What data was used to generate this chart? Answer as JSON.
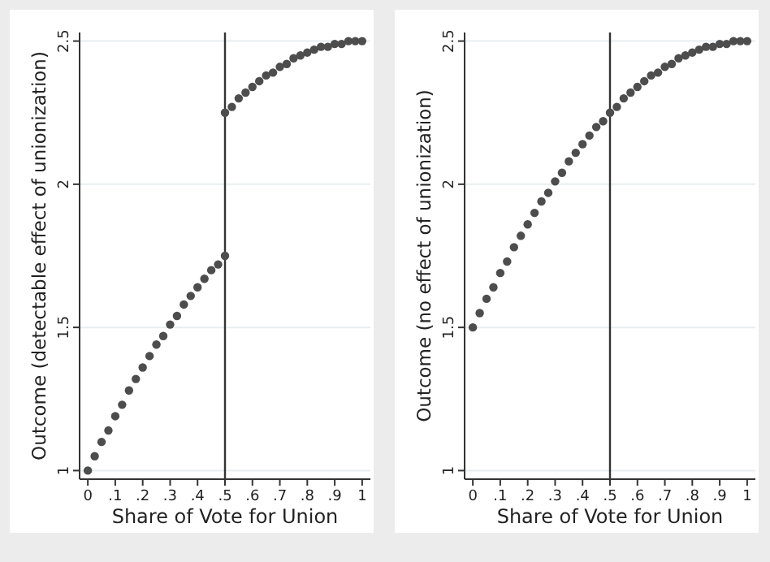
{
  "chart_data": [
    {
      "type": "scatter",
      "xlabel": "Share of Vote for Union",
      "ylabel": "Outcome (detectable effect of unionization)",
      "xlim": [
        -0.03,
        1.03
      ],
      "ylim": [
        0.97,
        2.53
      ],
      "xticks": [
        {
          "value": 0,
          "label": "0"
        },
        {
          "value": 0.1,
          "label": ".1"
        },
        {
          "value": 0.2,
          "label": ".2"
        },
        {
          "value": 0.3,
          "label": ".3"
        },
        {
          "value": 0.4,
          "label": ".4"
        },
        {
          "value": 0.5,
          "label": ".5"
        },
        {
          "value": 0.6,
          "label": ".6"
        },
        {
          "value": 0.7,
          "label": ".7"
        },
        {
          "value": 0.8,
          "label": ".8"
        },
        {
          "value": 0.9,
          "label": ".9"
        },
        {
          "value": 1,
          "label": "1"
        }
      ],
      "yticks": [
        1,
        1.5,
        2,
        2.5
      ],
      "grid": "y",
      "marker": "circle",
      "ref_lines": [
        {
          "axis": "x",
          "value": 0.5,
          "color": "#333333"
        }
      ],
      "series": [
        {
          "color": "#4d4d4d",
          "x": [
            0,
            0.025,
            0.05,
            0.075,
            0.1,
            0.125,
            0.15,
            0.175,
            0.2,
            0.225,
            0.25,
            0.275,
            0.3,
            0.325,
            0.35,
            0.375,
            0.4,
            0.425,
            0.45,
            0.475,
            0.5
          ],
          "values": [
            1,
            1.05,
            1.1,
            1.14,
            1.19,
            1.23,
            1.28,
            1.32,
            1.36,
            1.4,
            1.44,
            1.47,
            1.51,
            1.54,
            1.58,
            1.61,
            1.64,
            1.67,
            1.7,
            1.72,
            1.75
          ]
        },
        {
          "color": "#4d4d4d",
          "x": [
            0.5,
            0.525,
            0.55,
            0.575,
            0.6,
            0.625,
            0.65,
            0.675,
            0.7,
            0.725,
            0.75,
            0.775,
            0.8,
            0.825,
            0.85,
            0.875,
            0.9,
            0.925,
            0.95,
            0.975,
            1
          ],
          "values": [
            2.25,
            2.27,
            2.3,
            2.32,
            2.34,
            2.36,
            2.38,
            2.39,
            2.41,
            2.42,
            2.44,
            2.45,
            2.46,
            2.47,
            2.48,
            2.48,
            2.49,
            2.49,
            2.5,
            2.5,
            2.5
          ]
        }
      ]
    },
    {
      "type": "scatter",
      "xlabel": "Share of Vote for Union",
      "ylabel": "Outcome (no effect of unionization)",
      "xlim": [
        -0.03,
        1.03
      ],
      "ylim": [
        0.97,
        2.53
      ],
      "xticks": [
        {
          "value": 0,
          "label": "0"
        },
        {
          "value": 0.1,
          "label": ".1"
        },
        {
          "value": 0.2,
          "label": ".2"
        },
        {
          "value": 0.3,
          "label": ".3"
        },
        {
          "value": 0.4,
          "label": ".4"
        },
        {
          "value": 0.5,
          "label": ".5"
        },
        {
          "value": 0.6,
          "label": ".6"
        },
        {
          "value": 0.7,
          "label": ".7"
        },
        {
          "value": 0.8,
          "label": ".8"
        },
        {
          "value": 0.9,
          "label": ".9"
        },
        {
          "value": 1,
          "label": "1"
        }
      ],
      "yticks": [
        1,
        1.5,
        2,
        2.5
      ],
      "grid": "y",
      "marker": "circle",
      "ref_lines": [
        {
          "axis": "x",
          "value": 0.5,
          "color": "#333333"
        }
      ],
      "series": [
        {
          "color": "#4d4d4d",
          "x": [
            0,
            0.025,
            0.05,
            0.075,
            0.1,
            0.125,
            0.15,
            0.175,
            0.2,
            0.225,
            0.25,
            0.275,
            0.3,
            0.325,
            0.35,
            0.375,
            0.4,
            0.425,
            0.45,
            0.475,
            0.5,
            0.525,
            0.55,
            0.575,
            0.6,
            0.625,
            0.65,
            0.675,
            0.7,
            0.725,
            0.75,
            0.775,
            0.8,
            0.825,
            0.85,
            0.875,
            0.9,
            0.925,
            0.95,
            0.975,
            1
          ],
          "values": [
            1.5,
            1.55,
            1.6,
            1.64,
            1.69,
            1.73,
            1.78,
            1.82,
            1.86,
            1.9,
            1.94,
            1.97,
            2.01,
            2.04,
            2.08,
            2.11,
            2.14,
            2.17,
            2.2,
            2.22,
            2.25,
            2.27,
            2.3,
            2.32,
            2.34,
            2.36,
            2.38,
            2.39,
            2.41,
            2.42,
            2.44,
            2.45,
            2.46,
            2.47,
            2.48,
            2.48,
            2.49,
            2.49,
            2.5,
            2.5,
            2.5
          ]
        }
      ]
    }
  ]
}
